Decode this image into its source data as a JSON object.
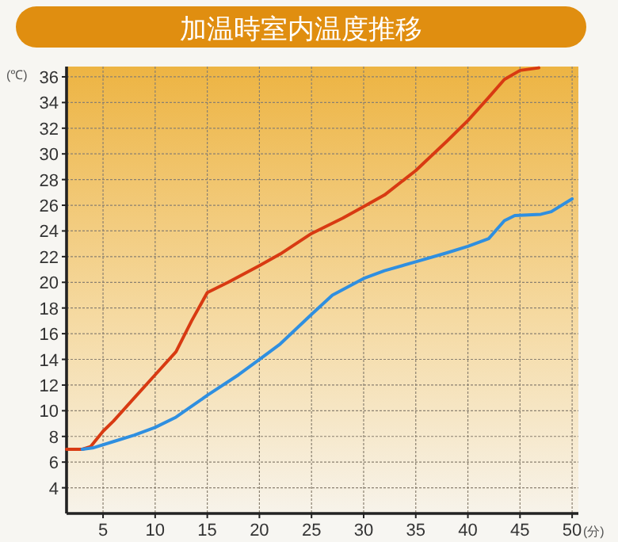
{
  "chart_data": {
    "type": "line",
    "title": "加温時室内温度推移",
    "xlabel": "(分)",
    "ylabel": "(℃)",
    "xlim": [
      1.5,
      50.6
    ],
    "ylim": [
      2,
      36.8
    ],
    "xticks": [
      5,
      10,
      15,
      20,
      25,
      30,
      35,
      40,
      45,
      50
    ],
    "yticks": [
      4,
      6,
      8,
      10,
      12,
      14,
      16,
      18,
      20,
      22,
      24,
      26,
      28,
      30,
      32,
      34,
      36
    ],
    "grid": true,
    "marker": "none",
    "line_style": "solid",
    "series": [
      {
        "color": "#d83a12",
        "x": [
          1.5,
          3,
          3.8,
          5,
          6,
          8,
          10,
          12,
          13.5,
          15,
          17,
          20,
          22,
          25,
          28,
          30,
          32,
          35,
          38,
          40,
          42,
          43.5,
          45,
          46.8
        ],
        "values": [
          7,
          7,
          7.2,
          8.4,
          9.2,
          11,
          12.8,
          14.6,
          17,
          19.2,
          20,
          21.3,
          22.2,
          23.8,
          25,
          25.9,
          26.8,
          28.7,
          31,
          32.6,
          34.4,
          35.8,
          36.5,
          36.7
        ]
      },
      {
        "color": "#2f8fe0",
        "x": [
          3,
          4,
          6,
          8,
          10,
          12,
          15,
          18,
          20,
          22,
          25,
          27,
          30,
          32,
          35,
          38,
          40,
          42,
          43.5,
          44.5,
          47,
          48,
          50
        ],
        "values": [
          7,
          7.1,
          7.6,
          8.1,
          8.7,
          9.5,
          11.2,
          12.8,
          14,
          15.2,
          17.5,
          19,
          20.3,
          20.9,
          21.6,
          22.3,
          22.8,
          23.4,
          24.8,
          25.2,
          25.3,
          25.5,
          26.5
        ]
      }
    ]
  }
}
